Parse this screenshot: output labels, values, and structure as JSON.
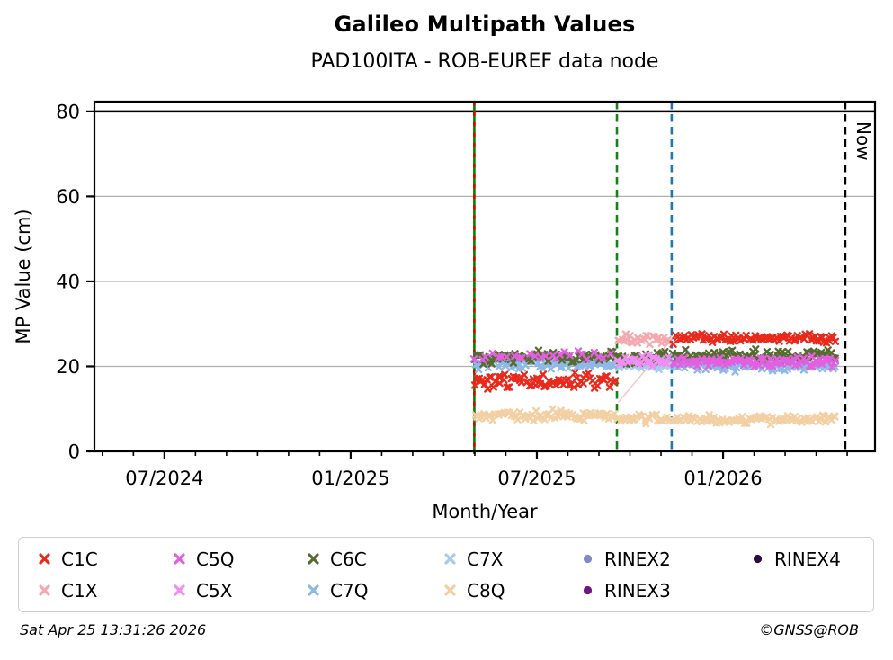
{
  "header": {
    "title": "Galileo Multipath Values",
    "subtitle": "PAD100ITA - ROB-EUREF data node"
  },
  "footer": {
    "timestamp": "Sat Apr 25 13:31:26 2026",
    "credit": "©GNSS@ROB"
  },
  "chart_data": {
    "type": "scatter",
    "title": "Galileo Multipath Values",
    "subtitle": "PAD100ITA - ROB-EUREF data node",
    "xlabel": "Month/Year",
    "ylabel": "MP Value (cm)",
    "grid": "horizontal-gray",
    "x_axis": {
      "unit": "decimal_year",
      "min": 2024.312,
      "max": 2026.408,
      "major_ticks": [
        {
          "value": 2024.5,
          "label": "07/2024"
        },
        {
          "value": 2025.0,
          "label": "01/2025"
        },
        {
          "value": 2025.5,
          "label": "07/2025"
        },
        {
          "value": 2026.0,
          "label": "01/2026"
        }
      ],
      "minor_tick_every_months": 1
    },
    "y_axis": {
      "min": 0,
      "max": 82.3,
      "ticks": [
        {
          "value": 0,
          "label": "0",
          "grid": false
        },
        {
          "value": 20,
          "label": "20",
          "grid": true
        },
        {
          "value": 40,
          "label": "40",
          "grid": true
        },
        {
          "value": 60,
          "label": "60",
          "grid": true
        },
        {
          "value": 80,
          "label": "80",
          "grid": false
        }
      ]
    },
    "threshold_line": {
      "y": 80,
      "color": "#000000"
    },
    "event_lines": [
      {
        "name": "rinex-switch-start",
        "x": 2025.332,
        "style": "solid",
        "color": "#008000",
        "overlay": {
          "style": "dashed",
          "color": "#e00000"
        }
      },
      {
        "name": "event-sep-2025",
        "x": 2025.715,
        "style": "dashed",
        "color": "#188018"
      },
      {
        "name": "event-nov-2025",
        "x": 2025.862,
        "style": "dashed",
        "color": "#1f77b4"
      },
      {
        "name": "now-line",
        "x": 2026.328,
        "style": "dashed",
        "color": "#000000",
        "label": "Now"
      }
    ],
    "series": [
      {
        "name": "C1C",
        "color": "#e8291c",
        "marker": "x",
        "segments": [
          {
            "x0": 2025.334,
            "x1": 2025.712,
            "mean": 16.4,
            "spread": 0.85
          },
          {
            "x0": 2025.866,
            "x1": 2026.308,
            "mean": 26.6,
            "spread": 0.55
          }
        ]
      },
      {
        "name": "C1X",
        "color": "#f5a9ae",
        "marker": "x",
        "segments": [
          {
            "x0": 2025.718,
            "x1": 2025.86,
            "mean": 26.4,
            "spread": 0.55
          }
        ]
      },
      {
        "name": "C5Q",
        "color": "#e35fe0",
        "marker": "x",
        "segments": [
          {
            "x0": 2025.334,
            "x1": 2025.712,
            "mean": 22.4,
            "spread": 0.5,
            "density": 0.35
          },
          {
            "x0": 2025.866,
            "x1": 2026.308,
            "mean": 21.2,
            "spread": 0.55
          }
        ]
      },
      {
        "name": "C5X",
        "color": "#f08df2",
        "marker": "x",
        "segments": [
          {
            "x0": 2025.718,
            "x1": 2025.86,
            "mean": 21.3,
            "spread": 0.6
          }
        ]
      },
      {
        "name": "C6C",
        "color": "#556b2f",
        "marker": "x",
        "segments": [
          {
            "x0": 2025.334,
            "x1": 2025.712,
            "mean": 22.2,
            "spread": 0.7
          },
          {
            "x0": 2025.718,
            "x1": 2025.86,
            "mean": 22.0,
            "spread": 0.7
          },
          {
            "x0": 2025.866,
            "x1": 2026.308,
            "mean": 22.5,
            "spread": 0.7
          }
        ]
      },
      {
        "name": "C7Q",
        "color": "#8db9e6",
        "marker": "x",
        "segments": [
          {
            "x0": 2025.334,
            "x1": 2025.712,
            "mean": 20.6,
            "spread": 0.6
          },
          {
            "x0": 2025.866,
            "x1": 2026.308,
            "mean": 20.1,
            "spread": 0.55
          }
        ]
      },
      {
        "name": "C7X",
        "color": "#a8cbec",
        "marker": "x",
        "segments": [
          {
            "x0": 2025.718,
            "x1": 2025.86,
            "mean": 20.4,
            "spread": 0.55
          }
        ]
      },
      {
        "name": "C8Q",
        "color": "#f3cfa4",
        "marker": "x",
        "segments": [
          {
            "x0": 2025.334,
            "x1": 2025.712,
            "mean": 8.3,
            "spread": 0.65
          },
          {
            "x0": 2025.718,
            "x1": 2025.86,
            "mean": 7.7,
            "spread": 0.5
          },
          {
            "x0": 2025.866,
            "x1": 2026.308,
            "mean": 7.5,
            "spread": 0.5
          }
        ]
      },
      {
        "name": "RINEX2",
        "color": "#8287c9",
        "marker": "dot",
        "segments": []
      },
      {
        "name": "RINEX3",
        "color": "#701583",
        "marker": "dot",
        "segments": [],
        "band": {
          "x0": 2025.328,
          "x1": 2026.312,
          "y": 81.0,
          "thickness_cm": 1.3
        }
      },
      {
        "name": "RINEX4",
        "color": "#2e0b3e",
        "marker": "dot",
        "segments": []
      }
    ],
    "connector_line": {
      "color": "#f6b6ba",
      "x0": 2025.718,
      "y0": 11.5,
      "x1": 2025.862,
      "y1": 26.4
    },
    "legend_order_column_major": [
      "C1C",
      "C1X",
      "C5Q",
      "C5X",
      "C6C",
      "C7Q",
      "C7X",
      "C8Q",
      "RINEX2",
      "RINEX3",
      "RINEX4"
    ]
  }
}
